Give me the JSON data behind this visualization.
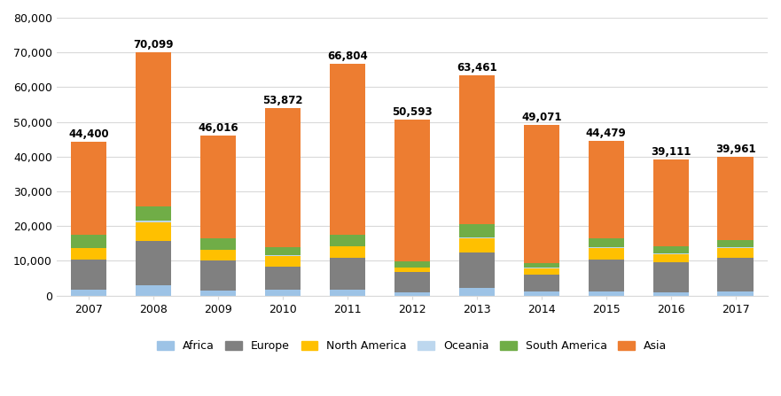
{
  "years": [
    2007,
    2008,
    2009,
    2010,
    2011,
    2012,
    2013,
    2014,
    2015,
    2016,
    2017
  ],
  "totals": [
    44400,
    70099,
    46016,
    53872,
    66804,
    50593,
    63461,
    49071,
    44479,
    39111,
    39961
  ],
  "categories": [
    "Africa",
    "Europe",
    "North America",
    "Oceania",
    "South America",
    "Asia"
  ],
  "colors": [
    "#9dc3e6",
    "#808080",
    "#ffc000",
    "#bdd7ee",
    "#70ad47",
    "#ed7d31"
  ],
  "data": {
    "Africa": [
      1700,
      2900,
      1400,
      1600,
      1700,
      1000,
      2200,
      1100,
      1200,
      1000,
      1100
    ],
    "Europe": [
      8700,
      12800,
      8800,
      6800,
      9200,
      5800,
      10200,
      4900,
      9300,
      8700,
      9700
    ],
    "North America": [
      3200,
      5500,
      2900,
      3000,
      3200,
      1200,
      4000,
      1800,
      3200,
      2200,
      2900
    ],
    "Oceania": [
      200,
      300,
      200,
      200,
      200,
      150,
      300,
      200,
      200,
      150,
      200
    ],
    "South America": [
      3600,
      4200,
      3200,
      2400,
      3300,
      1800,
      3800,
      1300,
      2700,
      2200,
      2200
    ],
    "Asia": [
      27000,
      44399,
      29516,
      39872,
      49204,
      40643,
      42961,
      39771,
      27879,
      24861,
      23861
    ]
  },
  "ylim": [
    0,
    80000
  ],
  "yticks": [
    0,
    10000,
    20000,
    30000,
    40000,
    50000,
    60000,
    70000,
    80000
  ],
  "ytick_labels": [
    "0",
    "10,000",
    "20,000",
    "30,000",
    "40,000",
    "50,000",
    "60,000",
    "70,000",
    "80,000"
  ],
  "background_color": "#ffffff",
  "grid_color": "#d9d9d9",
  "label_fontsize": 9,
  "annotation_fontsize": 8.5,
  "legend_fontsize": 9,
  "bar_width": 0.55
}
